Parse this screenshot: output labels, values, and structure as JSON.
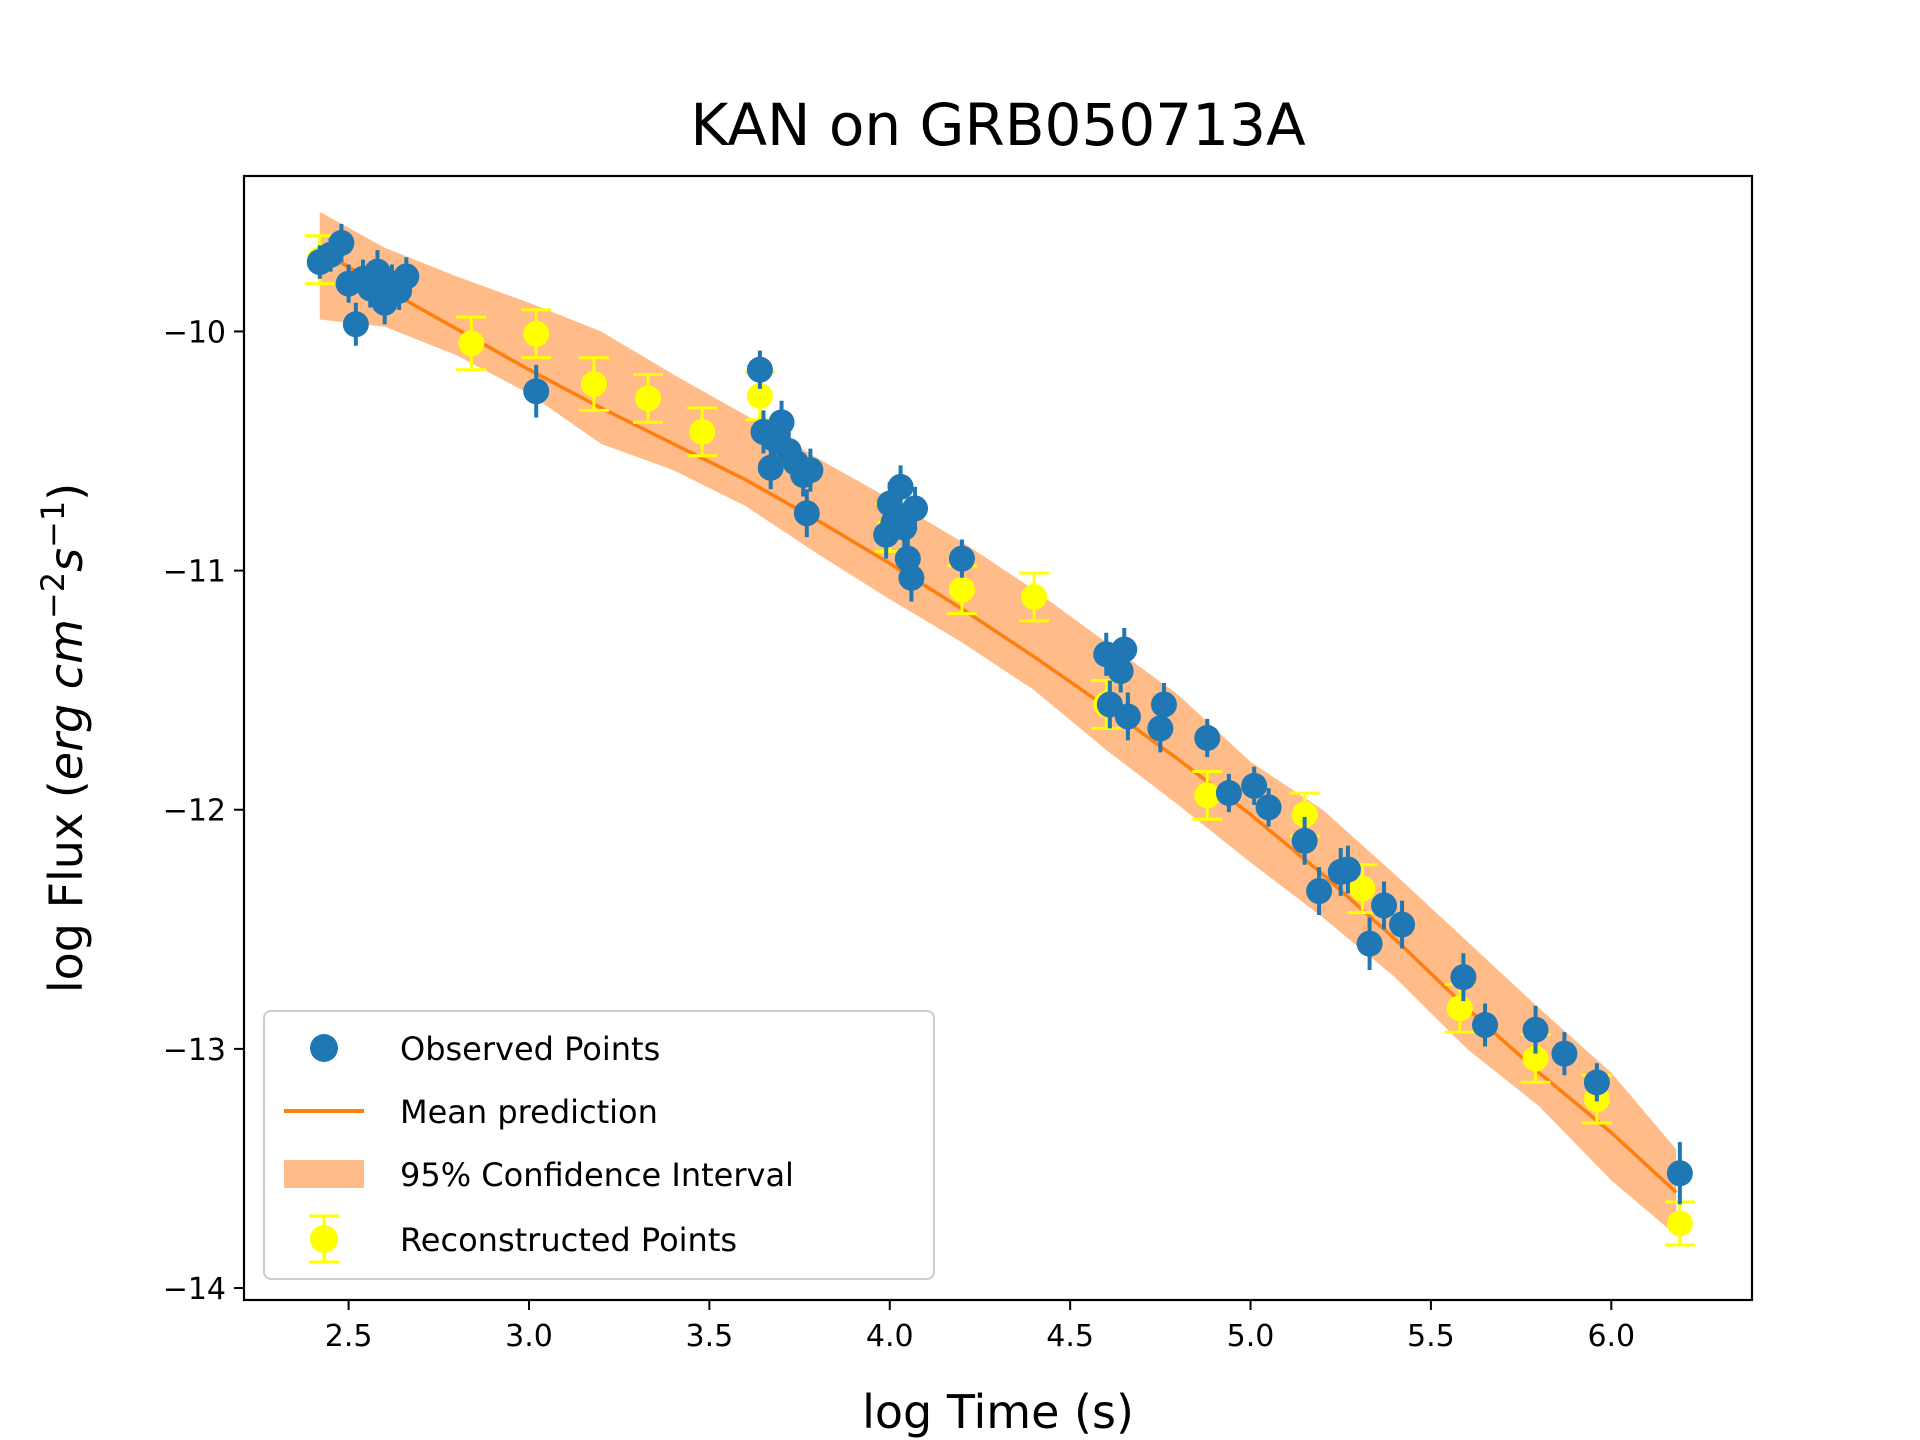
{
  "chart_data": {
    "type": "scatter",
    "title": "KAN on GRB050713A",
    "xlabel": "log Time (s)",
    "ylabel": {
      "prefix": "log Flux (",
      "unit_base1": "erg cm",
      "exp1": "−2",
      "unit_base2": "s",
      "exp2": "−1",
      "suffix": ")"
    },
    "xlim": [
      2.21,
      6.39
    ],
    "ylim": [
      -14.05,
      -9.35
    ],
    "xticks": [
      2.5,
      3.0,
      3.5,
      4.0,
      4.5,
      5.0,
      5.5,
      6.0
    ],
    "xtick_labels": [
      "2.5",
      "3.0",
      "3.5",
      "4.0",
      "4.5",
      "5.0",
      "5.5",
      "6.0"
    ],
    "yticks": [
      -10,
      -11,
      -12,
      -13,
      -14
    ],
    "ytick_labels": [
      "−10",
      "−11",
      "−12",
      "−13",
      "−14"
    ],
    "legend": {
      "position": "lower-left",
      "entries": [
        "Observed Points",
        "Mean prediction",
        "95% Confidence Interval",
        "Reconstructed Points"
      ]
    },
    "colors": {
      "observed": "#1f77b4",
      "mean": "#ff7f0e",
      "band": "#ffbb88",
      "reconstructed": "#ffff00"
    },
    "series": [
      {
        "name": "Mean prediction",
        "x": [
          2.42,
          2.6,
          2.8,
          3.0,
          3.2,
          3.4,
          3.6,
          3.8,
          4.0,
          4.2,
          4.4,
          4.6,
          4.8,
          5.0,
          5.2,
          5.4,
          5.6,
          5.8,
          6.0,
          6.18
        ],
        "y": [
          -9.66,
          -9.82,
          -9.99,
          -10.16,
          -10.32,
          -10.47,
          -10.62,
          -10.79,
          -10.97,
          -11.16,
          -11.36,
          -11.57,
          -11.79,
          -12.02,
          -12.27,
          -12.54,
          -12.83,
          -13.1,
          -13.35,
          -13.6
        ]
      },
      {
        "name": "95% Confidence Interval",
        "x": [
          2.42,
          2.6,
          2.8,
          3.0,
          3.2,
          3.4,
          3.6,
          3.8,
          4.0,
          4.2,
          4.4,
          4.6,
          4.8,
          5.0,
          5.2,
          5.4,
          5.6,
          5.8,
          6.0,
          6.18
        ],
        "upper": [
          -9.5,
          -9.65,
          -9.77,
          -9.88,
          -10.0,
          -10.18,
          -10.35,
          -10.53,
          -10.7,
          -10.88,
          -11.08,
          -11.3,
          -11.52,
          -11.8,
          -12.0,
          -12.27,
          -12.55,
          -12.83,
          -13.1,
          -13.42
        ],
        "lower": [
          -9.95,
          -9.98,
          -10.1,
          -10.26,
          -10.47,
          -10.58,
          -10.73,
          -10.93,
          -11.12,
          -11.3,
          -11.5,
          -11.75,
          -11.98,
          -12.22,
          -12.45,
          -12.7,
          -13.0,
          -13.24,
          -13.55,
          -13.78
        ]
      },
      {
        "name": "Observed Points",
        "x": [
          2.42,
          2.45,
          2.48,
          2.5,
          2.52,
          2.54,
          2.56,
          2.58,
          2.6,
          2.62,
          2.64,
          2.66,
          3.02,
          3.64,
          3.65,
          3.67,
          3.68,
          3.7,
          3.72,
          3.74,
          3.76,
          3.77,
          3.78,
          3.99,
          4.0,
          4.01,
          4.02,
          4.03,
          4.04,
          4.05,
          4.06,
          4.07,
          4.2,
          4.6,
          4.61,
          4.64,
          4.65,
          4.66,
          4.75,
          4.76,
          4.88,
          4.94,
          5.01,
          5.05,
          5.15,
          5.19,
          5.25,
          5.27,
          5.33,
          5.37,
          5.42,
          5.59,
          5.65,
          5.79,
          5.87,
          5.96,
          6.19
        ],
        "y": [
          -9.71,
          -9.68,
          -9.63,
          -9.8,
          -9.97,
          -9.78,
          -9.82,
          -9.75,
          -9.88,
          -9.8,
          -9.83,
          -9.77,
          -10.25,
          -10.16,
          -10.42,
          -10.57,
          -10.45,
          -10.38,
          -10.5,
          -10.55,
          -10.6,
          -10.76,
          -10.58,
          -10.85,
          -10.72,
          -10.8,
          -10.78,
          -10.65,
          -10.82,
          -10.95,
          -11.03,
          -10.74,
          -10.95,
          -11.35,
          -11.56,
          -11.42,
          -11.33,
          -11.61,
          -11.66,
          -11.56,
          -11.7,
          -11.93,
          -11.9,
          -11.99,
          -12.13,
          -12.34,
          -12.26,
          -12.25,
          -12.56,
          -12.4,
          -12.48,
          -12.7,
          -12.9,
          -12.92,
          -13.02,
          -13.14,
          -13.52
        ],
        "yerr": [
          0.07,
          0.07,
          0.08,
          0.08,
          0.09,
          0.08,
          0.08,
          0.09,
          0.09,
          0.08,
          0.08,
          0.08,
          0.11,
          0.08,
          0.09,
          0.09,
          0.09,
          0.09,
          0.09,
          0.09,
          0.09,
          0.1,
          0.09,
          0.1,
          0.09,
          0.09,
          0.09,
          0.09,
          0.09,
          0.1,
          0.1,
          0.09,
          0.08,
          0.09,
          0.1,
          0.09,
          0.09,
          0.1,
          0.1,
          0.09,
          0.08,
          0.08,
          0.08,
          0.08,
          0.1,
          0.1,
          0.1,
          0.1,
          0.11,
          0.1,
          0.1,
          0.1,
          0.09,
          0.1,
          0.09,
          0.08,
          0.13
        ]
      },
      {
        "name": "Reconstructed Points",
        "x": [
          2.42,
          2.84,
          3.02,
          3.18,
          3.33,
          3.48,
          3.64,
          4.0,
          4.2,
          4.4,
          4.6,
          4.88,
          5.15,
          5.31,
          5.58,
          5.79,
          5.96,
          6.19
        ],
        "y": [
          -9.7,
          -10.05,
          -10.01,
          -10.22,
          -10.28,
          -10.42,
          -10.27,
          -10.82,
          -11.08,
          -11.11,
          -11.56,
          -11.94,
          -12.02,
          -12.33,
          -12.83,
          -13.04,
          -13.21,
          -13.73
        ],
        "yerr": [
          0.1,
          0.11,
          0.1,
          0.11,
          0.1,
          0.1,
          0.1,
          0.1,
          0.1,
          0.1,
          0.1,
          0.1,
          0.09,
          0.1,
          0.1,
          0.1,
          0.1,
          0.09
        ]
      }
    ]
  }
}
